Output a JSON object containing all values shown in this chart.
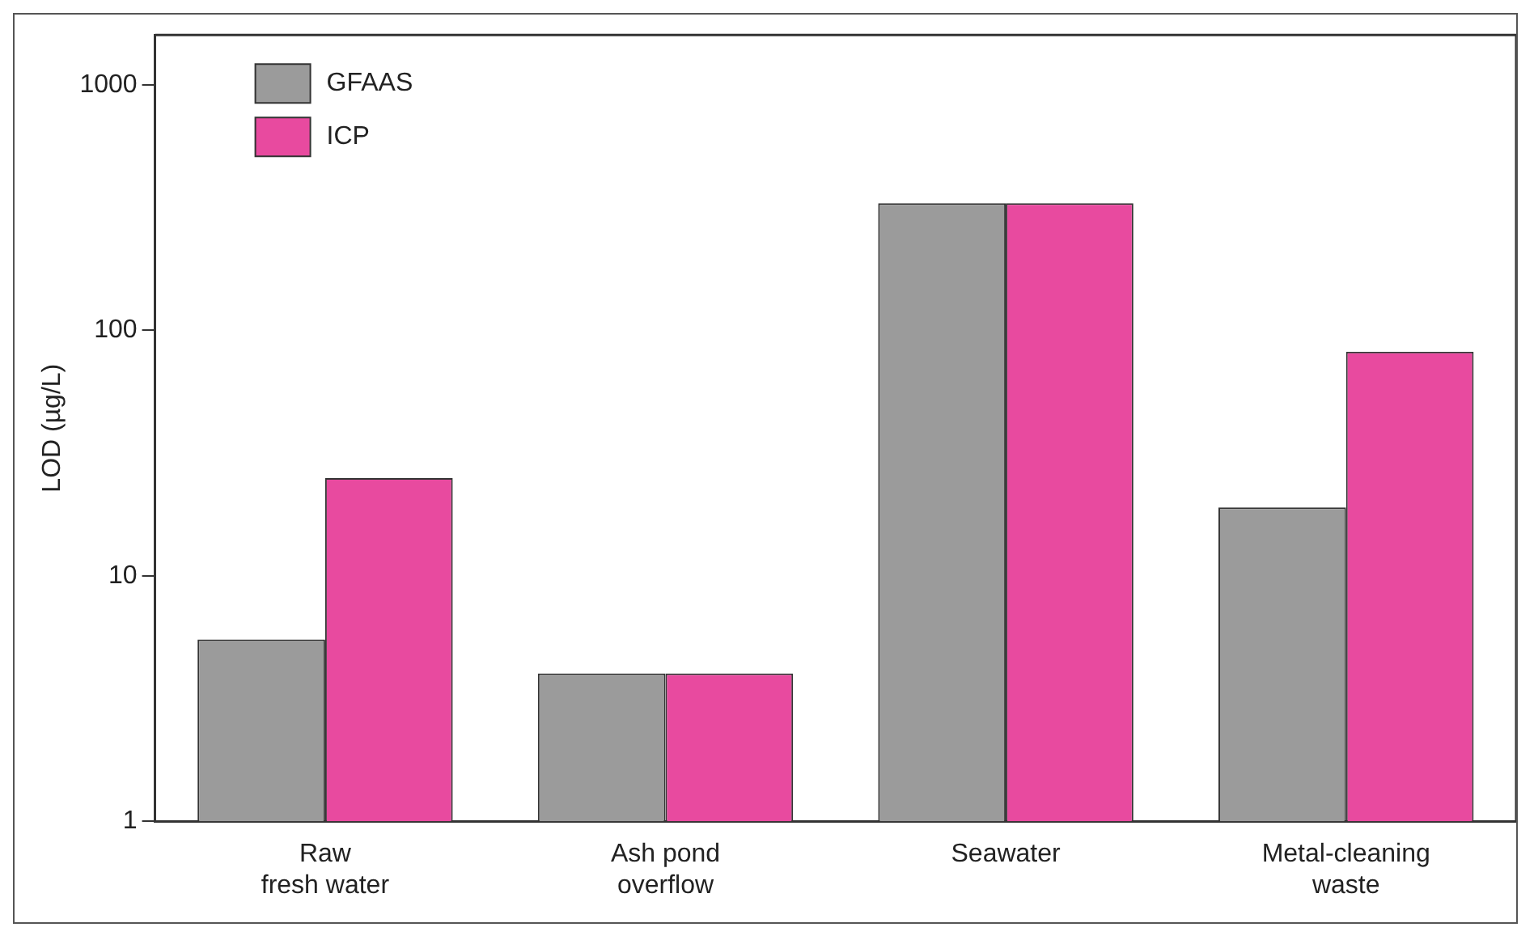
{
  "chart_data": {
    "type": "bar",
    "ylabel": "LOD (µg/L)",
    "categories": [
      "Raw\nfresh water",
      "Ash pond\noverflow",
      "Seawater",
      "Metal-cleaning\nwaste"
    ],
    "series": [
      {
        "name": "GFAAS",
        "color": "#9b9b9b",
        "values": [
          5.5,
          4,
          330,
          19
        ]
      },
      {
        "name": "ICP",
        "color": "#e84a9f",
        "values": [
          25,
          4,
          330,
          82
        ]
      }
    ],
    "log": "y",
    "ylim": [
      1,
      1600
    ],
    "yticks": [
      1,
      10,
      100,
      1000
    ],
    "grid": false,
    "legend": "top left"
  }
}
